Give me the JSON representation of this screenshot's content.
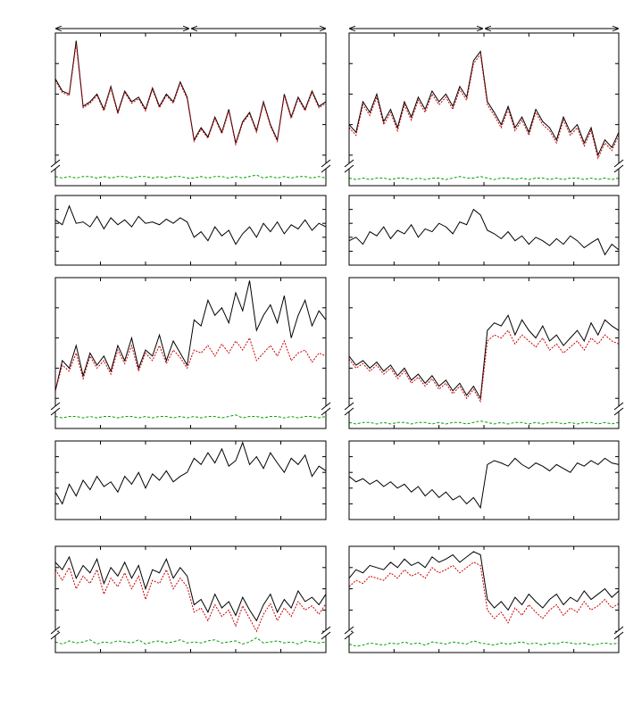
{
  "chart_data": [
    {
      "type": "line",
      "ylim": [
        0,
        100
      ],
      "axis_break": true,
      "series": [
        {
          "color": "#000000",
          "style": "solid",
          "values": [
            70,
            62,
            60,
            95,
            52,
            55,
            60,
            50,
            65,
            48,
            62,
            55,
            58,
            50,
            64,
            52,
            60,
            55,
            68,
            58,
            30,
            38,
            32,
            45,
            35,
            50,
            28,
            42,
            48,
            36,
            55,
            40,
            30,
            60,
            45,
            58,
            50,
            62,
            52,
            55
          ]
        },
        {
          "color": "#cc0000",
          "style": "dotted",
          "values": [
            69,
            61,
            59,
            93,
            51,
            54,
            59,
            49,
            64,
            47,
            61,
            54,
            57,
            49,
            63,
            51,
            59,
            54,
            67,
            57,
            29,
            37,
            31,
            44,
            34,
            49,
            27,
            41,
            47,
            35,
            54,
            39,
            29,
            59,
            44,
            57,
            49,
            61,
            51,
            54
          ]
        },
        {
          "color": "#00a000",
          "style": "dashed",
          "values": [
            6,
            5,
            6,
            5,
            6,
            6,
            5,
            6,
            5,
            6,
            6,
            5,
            6,
            6,
            5,
            6,
            5,
            6,
            6,
            5,
            5,
            6,
            5,
            6,
            6,
            5,
            6,
            5,
            6,
            7,
            5,
            6,
            5,
            6,
            5,
            6,
            6,
            5,
            6,
            5
          ]
        }
      ]
    },
    {
      "type": "line",
      "ylim": [
        0,
        100
      ],
      "axis_break": true,
      "series": [
        {
          "color": "#000000",
          "style": "solid",
          "values": [
            40,
            35,
            55,
            48,
            60,
            42,
            50,
            38,
            55,
            45,
            58,
            50,
            62,
            55,
            60,
            52,
            65,
            58,
            82,
            88,
            55,
            48,
            40,
            52,
            38,
            45,
            35,
            50,
            42,
            38,
            30,
            45,
            35,
            40,
            28,
            38,
            20,
            30,
            25,
            35
          ]
        },
        {
          "color": "#cc0000",
          "style": "dotted",
          "values": [
            38,
            33,
            53,
            46,
            58,
            40,
            48,
            36,
            53,
            43,
            56,
            48,
            60,
            53,
            58,
            50,
            63,
            56,
            80,
            86,
            53,
            46,
            38,
            50,
            36,
            43,
            33,
            48,
            40,
            36,
            28,
            43,
            33,
            38,
            26,
            36,
            18,
            28,
            23,
            33
          ]
        },
        {
          "color": "#00a000",
          "style": "dashed",
          "values": [
            5,
            4,
            5,
            4,
            5,
            5,
            4,
            5,
            5,
            4,
            5,
            4,
            5,
            5,
            4,
            5,
            6,
            5,
            5,
            6,
            5,
            4,
            5,
            5,
            4,
            5,
            4,
            5,
            5,
            4,
            5,
            4,
            5,
            5,
            4,
            5,
            4,
            5,
            4,
            5
          ]
        }
      ]
    },
    {
      "type": "line",
      "ylim": [
        0,
        100
      ],
      "axis_break": false,
      "series": [
        {
          "color": "#000000",
          "style": "solid",
          "values": [
            65,
            58,
            85,
            60,
            62,
            55,
            70,
            52,
            68,
            58,
            65,
            55,
            70,
            60,
            62,
            58,
            66,
            60,
            68,
            62,
            40,
            48,
            35,
            55,
            42,
            50,
            30,
            45,
            55,
            40,
            60,
            48,
            62,
            45,
            58,
            52,
            65,
            50,
            60,
            55
          ]
        }
      ]
    },
    {
      "type": "line",
      "ylim": [
        0,
        100
      ],
      "axis_break": false,
      "series": [
        {
          "color": "#000000",
          "style": "solid",
          "values": [
            35,
            40,
            30,
            48,
            42,
            55,
            38,
            50,
            45,
            58,
            40,
            52,
            48,
            60,
            55,
            45,
            62,
            58,
            80,
            72,
            50,
            45,
            38,
            48,
            35,
            42,
            30,
            40,
            35,
            28,
            38,
            30,
            42,
            35,
            25,
            32,
            38,
            15,
            30,
            22
          ]
        }
      ]
    },
    {
      "type": "line",
      "ylim": [
        0,
        100
      ],
      "axis_break": true,
      "series": [
        {
          "color": "#000000",
          "style": "solid",
          "values": [
            25,
            45,
            40,
            55,
            35,
            50,
            42,
            48,
            38,
            55,
            45,
            60,
            40,
            52,
            48,
            62,
            45,
            58,
            50,
            42,
            72,
            68,
            85,
            75,
            80,
            70,
            90,
            78,
            98,
            65,
            75,
            82,
            70,
            88,
            60,
            75,
            85,
            68,
            78,
            72
          ]
        },
        {
          "color": "#cc0000",
          "style": "dotted",
          "values": [
            25,
            42,
            38,
            50,
            33,
            48,
            40,
            45,
            36,
            52,
            43,
            55,
            38,
            50,
            45,
            55,
            43,
            52,
            47,
            40,
            52,
            50,
            55,
            48,
            56,
            50,
            58,
            52,
            60,
            45,
            50,
            55,
            48,
            58,
            45,
            50,
            52,
            44,
            50,
            48
          ]
        },
        {
          "color": "#00a000",
          "style": "dashed",
          "values": [
            8,
            7,
            8,
            8,
            7,
            8,
            7,
            8,
            8,
            7,
            8,
            8,
            7,
            8,
            7,
            8,
            8,
            7,
            8,
            7,
            8,
            7,
            8,
            8,
            7,
            8,
            9,
            7,
            8,
            8,
            7,
            8,
            8,
            7,
            8,
            7,
            8,
            8,
            7,
            8
          ]
        }
      ]
    },
    {
      "type": "line",
      "ylim": [
        0,
        100
      ],
      "axis_break": true,
      "series": [
        {
          "color": "#000000",
          "style": "solid",
          "values": [
            48,
            42,
            45,
            40,
            44,
            38,
            42,
            35,
            40,
            32,
            36,
            30,
            35,
            28,
            32,
            25,
            30,
            22,
            28,
            20,
            65,
            70,
            68,
            75,
            62,
            72,
            65,
            60,
            68,
            58,
            62,
            55,
            60,
            65,
            58,
            70,
            62,
            72,
            68,
            65
          ]
        },
        {
          "color": "#cc0000",
          "style": "dotted",
          "values": [
            46,
            40,
            43,
            38,
            42,
            36,
            40,
            33,
            38,
            30,
            34,
            28,
            33,
            26,
            30,
            23,
            28,
            20,
            26,
            18,
            58,
            62,
            60,
            65,
            56,
            62,
            58,
            54,
            60,
            52,
            56,
            50,
            54,
            58,
            52,
            60,
            56,
            62,
            58,
            56
          ]
        },
        {
          "color": "#00a000",
          "style": "dashed",
          "values": [
            4,
            3,
            4,
            4,
            3,
            4,
            3,
            4,
            4,
            3,
            4,
            4,
            3,
            4,
            3,
            4,
            4,
            3,
            4,
            5,
            4,
            3,
            4,
            3,
            4,
            4,
            3,
            4,
            3,
            4,
            4,
            3,
            4,
            3,
            4,
            4,
            3,
            4,
            3,
            4
          ]
        }
      ]
    },
    {
      "type": "line",
      "ylim": [
        0,
        100
      ],
      "axis_break": false,
      "series": [
        {
          "color": "#000000",
          "style": "solid",
          "values": [
            35,
            20,
            45,
            30,
            50,
            38,
            55,
            42,
            48,
            35,
            55,
            45,
            60,
            40,
            58,
            50,
            62,
            48,
            55,
            60,
            78,
            70,
            85,
            72,
            90,
            68,
            75,
            98,
            70,
            80,
            65,
            85,
            72,
            60,
            78,
            70,
            82,
            55,
            68,
            62
          ]
        }
      ]
    },
    {
      "type": "line",
      "ylim": [
        0,
        100
      ],
      "axis_break": false,
      "series": [
        {
          "color": "#000000",
          "style": "solid",
          "values": [
            55,
            48,
            52,
            45,
            50,
            42,
            48,
            40,
            45,
            35,
            42,
            30,
            38,
            28,
            35,
            25,
            30,
            20,
            28,
            15,
            70,
            75,
            72,
            68,
            78,
            70,
            65,
            72,
            68,
            62,
            70,
            65,
            60,
            72,
            68,
            75,
            70,
            78,
            72,
            70
          ]
        }
      ]
    },
    {
      "type": "line",
      "ylim": [
        0,
        100
      ],
      "axis_break": true,
      "series": [
        {
          "color": "#000000",
          "style": "solid",
          "values": [
            85,
            78,
            90,
            70,
            82,
            75,
            88,
            65,
            80,
            72,
            85,
            70,
            82,
            60,
            78,
            75,
            88,
            70,
            80,
            72,
            45,
            50,
            38,
            55,
            42,
            48,
            35,
            52,
            40,
            30,
            45,
            55,
            38,
            50,
            42,
            58,
            48,
            52,
            45,
            55
          ]
        },
        {
          "color": "#cc0000",
          "style": "dotted",
          "values": [
            78,
            68,
            80,
            60,
            72,
            65,
            78,
            55,
            70,
            62,
            75,
            60,
            72,
            50,
            68,
            65,
            78,
            60,
            70,
            62,
            38,
            42,
            30,
            45,
            34,
            40,
            25,
            44,
            32,
            20,
            36,
            46,
            30,
            42,
            34,
            48,
            40,
            44,
            36,
            46
          ]
        },
        {
          "color": "#00a000",
          "style": "dashed",
          "values": [
            10,
            8,
            11,
            9,
            10,
            12,
            8,
            10,
            9,
            11,
            10,
            9,
            12,
            8,
            10,
            11,
            9,
            10,
            12,
            9,
            10,
            9,
            11,
            12,
            9,
            10,
            11,
            8,
            10,
            14,
            9,
            10,
            11,
            9,
            10,
            8,
            11,
            10,
            9,
            10
          ]
        }
      ]
    },
    {
      "type": "line",
      "ylim": [
        0,
        100
      ],
      "axis_break": true,
      "series": [
        {
          "color": "#000000",
          "style": "solid",
          "values": [
            70,
            78,
            75,
            82,
            80,
            78,
            85,
            80,
            88,
            82,
            85,
            80,
            90,
            85,
            88,
            92,
            85,
            90,
            95,
            92,
            50,
            42,
            48,
            40,
            52,
            45,
            55,
            48,
            42,
            50,
            55,
            45,
            52,
            48,
            58,
            50,
            55,
            60,
            52,
            58
          ]
        },
        {
          "color": "#cc0000",
          "style": "dotted",
          "values": [
            62,
            68,
            65,
            72,
            70,
            68,
            75,
            70,
            78,
            72,
            75,
            70,
            80,
            75,
            78,
            82,
            75,
            80,
            85,
            82,
            40,
            32,
            38,
            28,
            42,
            35,
            45,
            38,
            32,
            40,
            45,
            35,
            42,
            38,
            48,
            40,
            44,
            50,
            42,
            46
          ]
        },
        {
          "color": "#00a000",
          "style": "dashed",
          "values": [
            8,
            6,
            7,
            9,
            8,
            7,
            9,
            8,
            10,
            8,
            9,
            7,
            10,
            9,
            8,
            10,
            9,
            8,
            11,
            9,
            8,
            7,
            9,
            8,
            9,
            10,
            8,
            9,
            7,
            9,
            8,
            10,
            9,
            8,
            9,
            7,
            8,
            9,
            8,
            9
          ]
        }
      ]
    }
  ]
}
